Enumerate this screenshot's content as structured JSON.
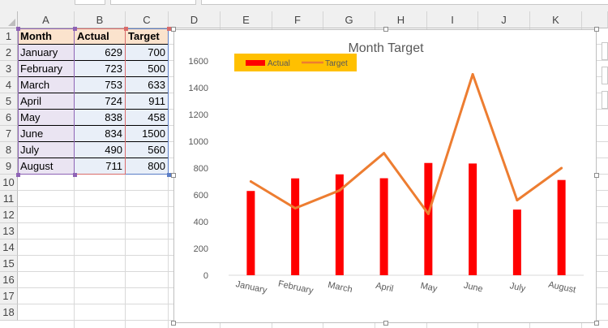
{
  "columns": [
    "A",
    "B",
    "C",
    "D",
    "E",
    "F",
    "G",
    "H",
    "I",
    "J",
    "K"
  ],
  "rows": [
    "1",
    "2",
    "3",
    "4",
    "5",
    "6",
    "7",
    "8",
    "9",
    "10",
    "11",
    "12",
    "13",
    "14",
    "15",
    "16",
    "17",
    "18"
  ],
  "table": {
    "headers": [
      "Month",
      "Actual",
      "Target"
    ],
    "rows": [
      {
        "month": "January",
        "actual": "629",
        "target": "700"
      },
      {
        "month": "February",
        "actual": "723",
        "target": "500"
      },
      {
        "month": "March",
        "actual": "753",
        "target": "633"
      },
      {
        "month": "April",
        "actual": "724",
        "target": "911"
      },
      {
        "month": "May",
        "actual": "838",
        "target": "458"
      },
      {
        "month": "June",
        "actual": "834",
        "target": "1500"
      },
      {
        "month": "July",
        "actual": "490",
        "target": "560"
      },
      {
        "month": "August",
        "actual": "711",
        "target": "800"
      }
    ]
  },
  "chart_data": {
    "type": "bar",
    "title": "Month Target",
    "categories": [
      "January",
      "February",
      "March",
      "April",
      "May",
      "June",
      "July",
      "August"
    ],
    "series": [
      {
        "name": "Actual",
        "type": "bar",
        "color": "#ff0000",
        "values": [
          629,
          723,
          753,
          724,
          838,
          834,
          490,
          711
        ]
      },
      {
        "name": "Target",
        "type": "line",
        "color": "#ed7d31",
        "values": [
          700,
          500,
          633,
          911,
          458,
          1500,
          560,
          800
        ]
      }
    ],
    "yticks": [
      "0",
      "200",
      "400",
      "600",
      "800",
      "1000",
      "1200",
      "1400",
      "1600"
    ],
    "ylim": [
      0,
      1600
    ],
    "xlabel": "",
    "ylabel": "",
    "legend": {
      "placement": "top-left",
      "background": "#ffc000"
    },
    "grid": false
  }
}
